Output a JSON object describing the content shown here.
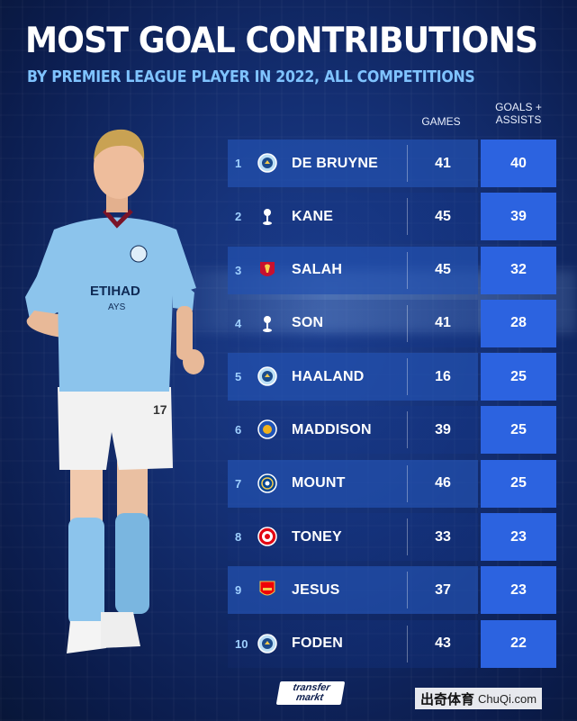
{
  "title": "MOST GOAL CONTRIBUTIONS",
  "subtitle": "BY PREMIER LEAGUE PLAYER IN 2022, ALL COMPETITIONS",
  "columns": {
    "games": "GAMES",
    "goals_assists_line1": "GOALS +",
    "goals_assists_line2": "ASSISTS"
  },
  "players": [
    {
      "rank": "1",
      "name": "DE BRUYNE",
      "club_icon": "man-city-icon",
      "games": "41",
      "goals_assists": "40"
    },
    {
      "rank": "2",
      "name": "KANE",
      "club_icon": "tottenham-icon",
      "games": "45",
      "goals_assists": "39"
    },
    {
      "rank": "3",
      "name": "SALAH",
      "club_icon": "liverpool-icon",
      "games": "45",
      "goals_assists": "32"
    },
    {
      "rank": "4",
      "name": "SON",
      "club_icon": "tottenham-icon",
      "games": "41",
      "goals_assists": "28"
    },
    {
      "rank": "5",
      "name": "HAALAND",
      "club_icon": "man-city-icon",
      "games": "16",
      "goals_assists": "25"
    },
    {
      "rank": "6",
      "name": "MADDISON",
      "club_icon": "leicester-icon",
      "games": "39",
      "goals_assists": "25"
    },
    {
      "rank": "7",
      "name": "MOUNT",
      "club_icon": "chelsea-icon",
      "games": "46",
      "goals_assists": "25"
    },
    {
      "rank": "8",
      "name": "TONEY",
      "club_icon": "brentford-icon",
      "games": "33",
      "goals_assists": "23"
    },
    {
      "rank": "9",
      "name": "JESUS",
      "club_icon": "arsenal-icon",
      "games": "37",
      "goals_assists": "23"
    },
    {
      "rank": "10",
      "name": "FODEN",
      "club_icon": "man-city-icon",
      "games": "43",
      "goals_assists": "22"
    }
  ],
  "player_shirt": {
    "sponsor_line1": "ETIHAD",
    "sponsor_line2": "AYS",
    "number": "17"
  },
  "brand": {
    "line1": "transfer",
    "line2": "markt"
  },
  "watermark": {
    "cn": "出奇体育",
    "site": "ChuQi.com"
  },
  "colors": {
    "background": "#142f73",
    "accent": "#2c63e0",
    "subtitle": "#7fc3ff",
    "shirt": "#8cc4ec"
  }
}
